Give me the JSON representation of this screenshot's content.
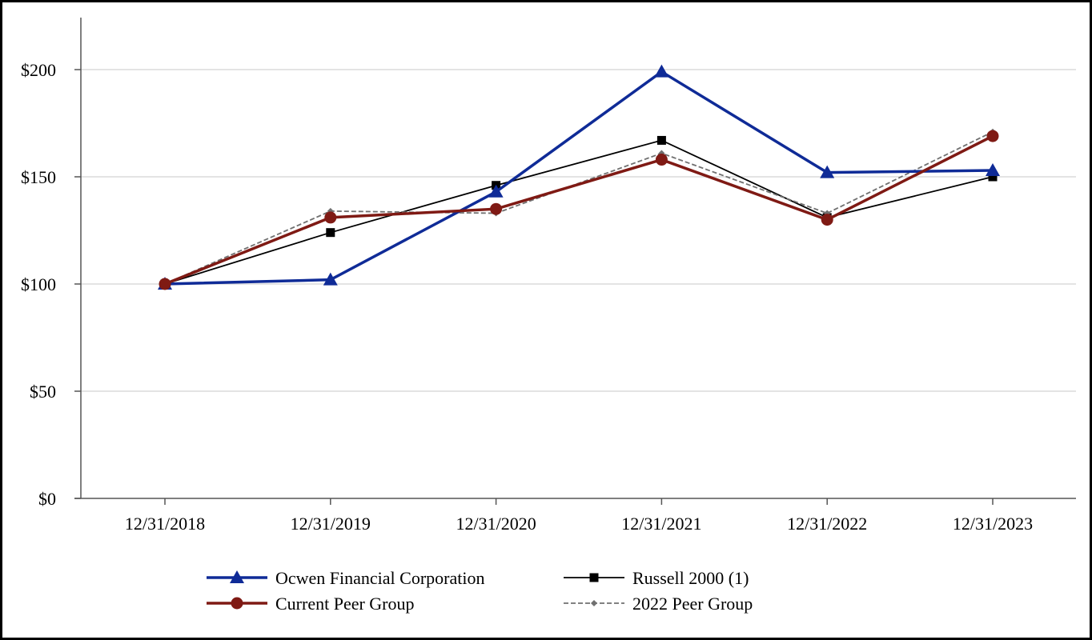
{
  "chart_data": {
    "type": "line",
    "categories": [
      "12/31/2018",
      "12/31/2019",
      "12/31/2020",
      "12/31/2021",
      "12/31/2022",
      "12/31/2023"
    ],
    "y_ticks": [
      {
        "value": 0,
        "label": "$0"
      },
      {
        "value": 50,
        "label": "$50"
      },
      {
        "value": 100,
        "label": "$100"
      },
      {
        "value": 150,
        "label": "$150"
      },
      {
        "value": 200,
        "label": "$200"
      }
    ],
    "ylim": [
      0,
      225
    ],
    "grid": "horizontal",
    "legend_position": "bottom",
    "series": [
      {
        "name": "Ocwen Financial Corporation",
        "values": [
          100,
          102,
          143,
          199,
          152,
          153
        ],
        "color": "#0f2b97",
        "marker": "triangle",
        "line": "solid-thick"
      },
      {
        "name": "Russell 2000 (1)",
        "values": [
          100,
          124,
          146,
          167,
          131,
          150
        ],
        "color": "#000000",
        "marker": "square",
        "line": "solid-thin"
      },
      {
        "name": "Current Peer Group",
        "values": [
          100,
          131,
          135,
          158,
          130,
          169
        ],
        "color": "#7f1a14",
        "marker": "circle",
        "line": "solid-thick"
      },
      {
        "name": "2022 Peer Group",
        "values": [
          100,
          134,
          133,
          161,
          133,
          171
        ],
        "color": "#707070",
        "marker": "diamond",
        "line": "dashed"
      }
    ],
    "title": "",
    "xlabel": "",
    "ylabel": ""
  }
}
